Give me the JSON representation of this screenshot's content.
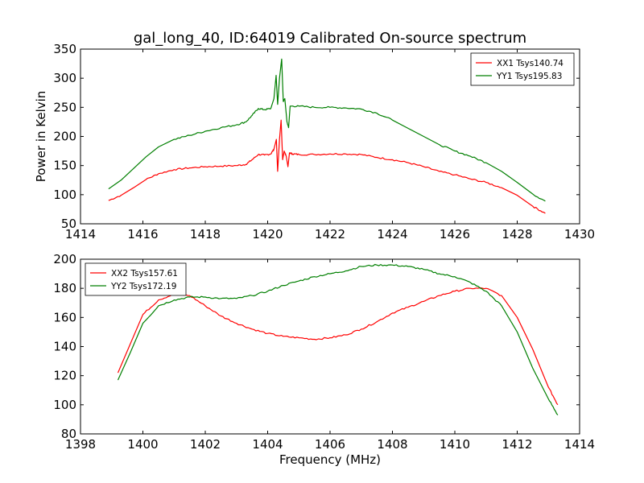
{
  "figure": {
    "title": "gal_long_40, ID:64019 Calibrated On-source spectrum"
  },
  "colors": {
    "red": "#ff0000",
    "green": "#007f00"
  },
  "chart_data": [
    {
      "type": "line",
      "title": "gal_long_40, ID:64019 Calibrated On-source spectrum",
      "xlabel": "",
      "ylabel": "Power in Kelvin",
      "xlim": [
        1414,
        1430
      ],
      "ylim": [
        50,
        350
      ],
      "xticks": [
        1414,
        1416,
        1418,
        1420,
        1422,
        1424,
        1426,
        1428,
        1430
      ],
      "yticks": [
        50,
        100,
        150,
        200,
        250,
        300,
        350
      ],
      "legend": "top-right",
      "grid": false,
      "series": [
        {
          "name": "XX1 Tsys140.74",
          "color": "#ff0000",
          "points": [
            [
              1414.9,
              90
            ],
            [
              1415.3,
              99
            ],
            [
              1415.7,
              112
            ],
            [
              1416.1,
              126
            ],
            [
              1416.5,
              136
            ],
            [
              1417.0,
              143
            ],
            [
              1417.5,
              146
            ],
            [
              1418.0,
              148
            ],
            [
              1418.5,
              149
            ],
            [
              1419.0,
              150
            ],
            [
              1419.3,
              152
            ],
            [
              1419.5,
              160
            ],
            [
              1419.7,
              169
            ],
            [
              1419.9,
              168
            ],
            [
              1420.1,
              170
            ],
            [
              1420.2,
              178
            ],
            [
              1420.28,
              195
            ],
            [
              1420.32,
              140
            ],
            [
              1420.38,
              195
            ],
            [
              1420.43,
              228
            ],
            [
              1420.48,
              160
            ],
            [
              1420.53,
              175
            ],
            [
              1420.6,
              165
            ],
            [
              1420.65,
              148
            ],
            [
              1420.7,
              172
            ],
            [
              1420.8,
              170
            ],
            [
              1421.0,
              169
            ],
            [
              1421.5,
              169
            ],
            [
              1422.0,
              170
            ],
            [
              1422.5,
              170
            ],
            [
              1423.0,
              169
            ],
            [
              1423.5,
              164
            ],
            [
              1424.0,
              160
            ],
            [
              1424.5,
              155
            ],
            [
              1425.0,
              148
            ],
            [
              1425.5,
              140
            ],
            [
              1426.0,
              134
            ],
            [
              1426.5,
              127
            ],
            [
              1427.0,
              121
            ],
            [
              1427.5,
              112
            ],
            [
              1428.0,
              99
            ],
            [
              1428.5,
              80
            ],
            [
              1428.9,
              68
            ]
          ]
        },
        {
          "name": "YY1 Tsys195.83",
          "color": "#007f00",
          "points": [
            [
              1414.9,
              110
            ],
            [
              1415.3,
              125
            ],
            [
              1415.7,
              145
            ],
            [
              1416.1,
              165
            ],
            [
              1416.5,
              182
            ],
            [
              1417.0,
              195
            ],
            [
              1417.5,
              202
            ],
            [
              1418.0,
              209
            ],
            [
              1418.5,
              215
            ],
            [
              1419.0,
              220
            ],
            [
              1419.3,
              225
            ],
            [
              1419.5,
              236
            ],
            [
              1419.7,
              248
            ],
            [
              1419.9,
              246
            ],
            [
              1420.1,
              248
            ],
            [
              1420.2,
              265
            ],
            [
              1420.27,
              305
            ],
            [
              1420.32,
              255
            ],
            [
              1420.38,
              300
            ],
            [
              1420.45,
              333
            ],
            [
              1420.5,
              260
            ],
            [
              1420.55,
              265
            ],
            [
              1420.62,
              225
            ],
            [
              1420.67,
              215
            ],
            [
              1420.72,
              252
            ],
            [
              1421.0,
              252
            ],
            [
              1421.5,
              250
            ],
            [
              1422.0,
              250
            ],
            [
              1422.5,
              249
            ],
            [
              1423.0,
              247
            ],
            [
              1423.5,
              240
            ],
            [
              1424.0,
              228
            ],
            [
              1424.5,
              214
            ],
            [
              1425.0,
              200
            ],
            [
              1425.5,
              186
            ],
            [
              1426.0,
              175
            ],
            [
              1426.5,
              166
            ],
            [
              1427.0,
              155
            ],
            [
              1427.5,
              140
            ],
            [
              1428.0,
              121
            ],
            [
              1428.5,
              101
            ],
            [
              1428.9,
              89
            ]
          ]
        }
      ]
    },
    {
      "type": "line",
      "title": "",
      "xlabel": "Frequency (MHz)",
      "ylabel": "",
      "xlim": [
        1398,
        1414
      ],
      "ylim": [
        80,
        200
      ],
      "xticks": [
        1398,
        1400,
        1402,
        1404,
        1406,
        1408,
        1410,
        1412,
        1414
      ],
      "yticks": [
        80,
        100,
        120,
        140,
        160,
        180,
        200
      ],
      "legend": "top-left",
      "grid": false,
      "series": [
        {
          "name": "XX2 Tsys157.61",
          "color": "#ff0000",
          "points": [
            [
              1399.2,
              122
            ],
            [
              1399.6,
              142
            ],
            [
              1400.0,
              162
            ],
            [
              1400.5,
              172
            ],
            [
              1401.0,
              176
            ],
            [
              1401.5,
              175
            ],
            [
              1402.0,
              168
            ],
            [
              1402.5,
              161
            ],
            [
              1403.0,
              156
            ],
            [
              1403.5,
              152
            ],
            [
              1404.0,
              149
            ],
            [
              1404.5,
              147
            ],
            [
              1405.0,
              146
            ],
            [
              1405.5,
              145
            ],
            [
              1406.0,
              146
            ],
            [
              1406.5,
              148
            ],
            [
              1407.0,
              152
            ],
            [
              1407.5,
              157
            ],
            [
              1408.0,
              163
            ],
            [
              1408.5,
              167
            ],
            [
              1409.0,
              171
            ],
            [
              1409.5,
              175
            ],
            [
              1410.0,
              178
            ],
            [
              1410.5,
              180
            ],
            [
              1411.0,
              180
            ],
            [
              1411.5,
              175
            ],
            [
              1412.0,
              160
            ],
            [
              1412.5,
              138
            ],
            [
              1413.0,
              112
            ],
            [
              1413.3,
              100
            ]
          ]
        },
        {
          "name": "YY2 Tsys172.19",
          "color": "#007f00",
          "points": [
            [
              1399.2,
              117
            ],
            [
              1399.6,
              136
            ],
            [
              1400.0,
              156
            ],
            [
              1400.5,
              168
            ],
            [
              1401.0,
              172
            ],
            [
              1401.5,
              174
            ],
            [
              1402.0,
              174
            ],
            [
              1402.5,
              173
            ],
            [
              1403.0,
              173
            ],
            [
              1403.5,
              175
            ],
            [
              1404.0,
              178
            ],
            [
              1404.5,
              182
            ],
            [
              1405.0,
              185
            ],
            [
              1405.5,
              188
            ],
            [
              1406.0,
              190
            ],
            [
              1406.5,
              192
            ],
            [
              1407.0,
              195
            ],
            [
              1407.5,
              196
            ],
            [
              1408.0,
              196
            ],
            [
              1408.5,
              195
            ],
            [
              1409.0,
              193
            ],
            [
              1409.5,
              190
            ],
            [
              1410.0,
              188
            ],
            [
              1410.5,
              184
            ],
            [
              1411.0,
              178
            ],
            [
              1411.5,
              168
            ],
            [
              1412.0,
              150
            ],
            [
              1412.5,
              125
            ],
            [
              1413.0,
              104
            ],
            [
              1413.3,
              93
            ]
          ]
        }
      ]
    }
  ]
}
